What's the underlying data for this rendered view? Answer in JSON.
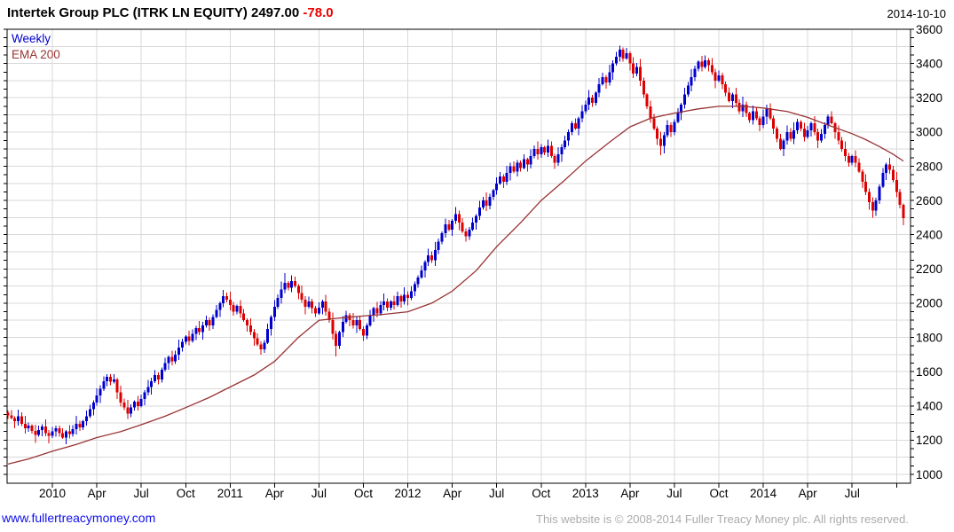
{
  "page": {
    "title_main": "Intertek Group PLC (ITRK LN EQUITY) 2497.00",
    "title_change": "-78.0",
    "date": "2014-10-10"
  },
  "legend": {
    "interval": "Weekly",
    "overlay": "EMA 200"
  },
  "footer": {
    "link": "www.fullertreacymoney.com",
    "copyright": "This website is © 2008-2014 Fuller Treacy Money plc. All rights reserved."
  },
  "colors": {
    "up_candle": "#0000CC",
    "down_candle": "#DD0000",
    "ema_line": "#993333",
    "grid": "#D9D9D9",
    "axis": "#000000",
    "change_text": "#EE0000",
    "link_text": "#0F0FEE",
    "copyright_text": "#ABABAB"
  },
  "chart_data": {
    "type": "candlestick",
    "title": "Intertek Group PLC (ITRK LN EQUITY)",
    "interval": "Weekly",
    "overlay": "EMA 200",
    "last_price": 2497.0,
    "change": -78.0,
    "ylim": [
      950,
      3600
    ],
    "grid": "on",
    "y_axis": {
      "label_step": 200,
      "grid_step": 100,
      "tick_step": 50,
      "labels": [
        "1000",
        "1200",
        "1400",
        "1600",
        "1800",
        "2000",
        "2200",
        "2400",
        "2600",
        "2800",
        "3000",
        "3200",
        "3400",
        "3600"
      ]
    },
    "x_axis": {
      "ticks": [
        {
          "label": "2010",
          "week": 13
        },
        {
          "label": "Apr",
          "week": 26
        },
        {
          "label": "Jul",
          "week": 39
        },
        {
          "label": "Oct",
          "week": 52
        },
        {
          "label": "2011",
          "week": 65
        },
        {
          "label": "Apr",
          "week": 78
        },
        {
          "label": "Jul",
          "week": 91
        },
        {
          "label": "Oct",
          "week": 104
        },
        {
          "label": "2012",
          "week": 117
        },
        {
          "label": "Apr",
          "week": 130
        },
        {
          "label": "Jul",
          "week": 143
        },
        {
          "label": "Oct",
          "week": 156
        },
        {
          "label": "2013",
          "week": 169
        },
        {
          "label": "Apr",
          "week": 182
        },
        {
          "label": "Jul",
          "week": 195
        },
        {
          "label": "Oct",
          "week": 208
        },
        {
          "label": "2014",
          "week": 221
        },
        {
          "label": "Apr",
          "week": 234
        },
        {
          "label": "Jul",
          "week": 247
        },
        {
          "label": "",
          "week": 260
        }
      ]
    },
    "open_rule": "previous_close",
    "first_open": 1360,
    "closes": [
      1345,
      1330,
      1310,
      1340,
      1295,
      1270,
      1285,
      1255,
      1230,
      1260,
      1280,
      1240,
      1225,
      1250,
      1270,
      1240,
      1215,
      1250,
      1235,
      1265,
      1295,
      1275,
      1310,
      1340,
      1380,
      1420,
      1460,
      1500,
      1545,
      1570,
      1540,
      1555,
      1480,
      1420,
      1390,
      1355,
      1390,
      1425,
      1400,
      1440,
      1480,
      1510,
      1545,
      1580,
      1555,
      1610,
      1650,
      1685,
      1660,
      1700,
      1740,
      1775,
      1805,
      1780,
      1820,
      1855,
      1830,
      1870,
      1900,
      1870,
      1920,
      1960,
      2000,
      2040,
      2020,
      1990,
      1950,
      1985,
      1940,
      1900,
      1870,
      1830,
      1795,
      1760,
      1730,
      1770,
      1850,
      1920,
      1980,
      2030,
      2080,
      2120,
      2090,
      2130,
      2100,
      2060,
      2020,
      1980,
      2010,
      1970,
      1940,
      1975,
      2010,
      1950,
      1900,
      1820,
      1750,
      1830,
      1890,
      1930,
      1900,
      1870,
      1900,
      1850,
      1810,
      1870,
      1930,
      1970,
      1940,
      1990,
      2010,
      1975,
      2010,
      1990,
      2040,
      2010,
      2050,
      2030,
      2070,
      2110,
      2150,
      2190,
      2240,
      2280,
      2250,
      2310,
      2360,
      2410,
      2460,
      2430,
      2480,
      2520,
      2470,
      2420,
      2390,
      2430,
      2470,
      2510,
      2560,
      2600,
      2570,
      2620,
      2660,
      2700,
      2740,
      2710,
      2760,
      2800,
      2770,
      2820,
      2790,
      2840,
      2810,
      2860,
      2900,
      2870,
      2910,
      2880,
      2920,
      2860,
      2820,
      2870,
      2910,
      2950,
      3000,
      3050,
      3020,
      3080,
      3120,
      3160,
      3200,
      3170,
      3230,
      3280,
      3320,
      3290,
      3350,
      3400,
      3440,
      3480,
      3430,
      3460,
      3400,
      3340,
      3380,
      3300,
      3220,
      3150,
      3080,
      3020,
      2960,
      2920,
      2980,
      3040,
      3000,
      3060,
      3110,
      3160,
      3220,
      3270,
      3320,
      3370,
      3410,
      3380,
      3420,
      3390,
      3350,
      3300,
      3330,
      3280,
      3230,
      3180,
      3220,
      3170,
      3120,
      3160,
      3110,
      3070,
      3120,
      3080,
      3040,
      3090,
      3140,
      3080,
      3020,
      2960,
      2900,
      2950,
      3000,
      2960,
      3010,
      3060,
      3020,
      2970,
      3010,
      3050,
      3000,
      2950,
      2990,
      3040,
      3090,
      3050,
      3000,
      2950,
      2900,
      2860,
      2820,
      2860,
      2820,
      2770,
      2710,
      2650,
      2590,
      2540,
      2600,
      2680,
      2760,
      2810,
      2780,
      2720,
      2650,
      2575,
      2497
    ],
    "wick_hi_cycle": [
      14,
      30,
      10,
      38,
      22,
      46,
      18,
      8,
      34,
      26,
      12,
      42,
      20,
      28,
      16
    ],
    "wick_lo_cycle": [
      26,
      10,
      36,
      18,
      44,
      12,
      30,
      20,
      8,
      40,
      24,
      14,
      32,
      22,
      16
    ],
    "wick_overrides": {
      "8": {
        "low": 1185
      },
      "81": {
        "high": 2175
      },
      "96": {
        "low": 1690
      },
      "179": {
        "high": 3505
      },
      "191": {
        "low": 2865
      },
      "253": {
        "low": 2500
      },
      "262": {
        "low": 2455
      }
    },
    "ema": {
      "name": "EMA 200",
      "anchors": [
        [
          0,
          1060
        ],
        [
          6,
          1090
        ],
        [
          13,
          1135
        ],
        [
          20,
          1175
        ],
        [
          26,
          1215
        ],
        [
          33,
          1250
        ],
        [
          39,
          1290
        ],
        [
          46,
          1340
        ],
        [
          52,
          1390
        ],
        [
          59,
          1450
        ],
        [
          65,
          1510
        ],
        [
          72,
          1580
        ],
        [
          78,
          1660
        ],
        [
          85,
          1800
        ],
        [
          91,
          1900
        ],
        [
          98,
          1915
        ],
        [
          104,
          1925
        ],
        [
          110,
          1935
        ],
        [
          117,
          1950
        ],
        [
          124,
          2000
        ],
        [
          130,
          2070
        ],
        [
          137,
          2190
        ],
        [
          143,
          2330
        ],
        [
          150,
          2470
        ],
        [
          156,
          2600
        ],
        [
          163,
          2720
        ],
        [
          169,
          2830
        ],
        [
          176,
          2940
        ],
        [
          182,
          3030
        ],
        [
          188,
          3080
        ],
        [
          195,
          3110
        ],
        [
          202,
          3135
        ],
        [
          208,
          3150
        ],
        [
          215,
          3150
        ],
        [
          221,
          3140
        ],
        [
          228,
          3120
        ],
        [
          234,
          3085
        ],
        [
          240,
          3040
        ],
        [
          247,
          2990
        ],
        [
          251,
          2955
        ],
        [
          255,
          2915
        ],
        [
          259,
          2870
        ],
        [
          262,
          2830
        ]
      ]
    }
  }
}
